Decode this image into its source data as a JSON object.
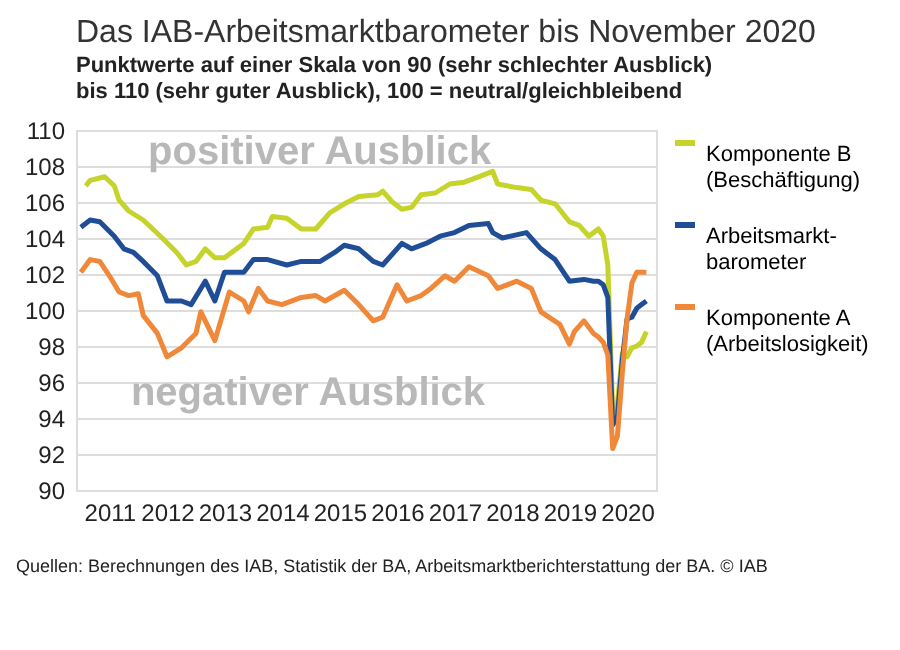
{
  "chart_data": {
    "type": "line",
    "title": "Das IAB-Arbeitsmarktbarometer bis November 2020",
    "subtitle": [
      "Punktwerte auf einer Skala von 90 (sehr schlechter Ausblick)",
      "bis 110 (sehr guter Ausblick), 100 = neutral/gleichbleibend"
    ],
    "annotations": [
      "positiver Ausblick",
      "negativer Ausblick",
      "Quellen: Berechnungen des IAB, Statistik der BA, Arbeitsmarktberichterstattung der BA. © IAB"
    ],
    "xlim": [
      "2010-12-01",
      "2021-01-01"
    ],
    "xticks": [
      {
        "value": "2011-07-01",
        "label": "2011"
      },
      {
        "value": "2012-07-01",
        "label": "2012"
      },
      {
        "value": "2013-07-01",
        "label": "2013"
      },
      {
        "value": "2014-07-01",
        "label": "2014"
      },
      {
        "value": "2015-07-01",
        "label": "2015"
      },
      {
        "value": "2016-07-01",
        "label": "2016"
      },
      {
        "value": "2017-07-01",
        "label": "2017"
      },
      {
        "value": "2018-07-01",
        "label": "2018"
      },
      {
        "value": "2019-07-01",
        "label": "2019"
      },
      {
        "value": "2020-07-01",
        "label": "2020"
      }
    ],
    "ylim": [
      90,
      110
    ],
    "yticks": [
      90,
      92,
      94,
      96,
      98,
      100,
      102,
      104,
      106,
      108,
      110
    ],
    "grid": "y",
    "legend": "right",
    "line_style": "solid",
    "marker": "none",
    "series": [
      {
        "name": "Komponente B\n(Beschäftigung)",
        "color": "#c5d32a",
        "x": [
          "2011-02",
          "2011-03",
          "2011-06",
          "2011-08",
          "2011-09",
          "2011-11",
          "2012-02",
          "2012-06",
          "2012-09",
          "2012-11",
          "2013-01",
          "2013-03",
          "2013-05",
          "2013-07",
          "2013-11",
          "2014-01",
          "2014-04",
          "2014-05",
          "2014-08",
          "2014-11",
          "2015-02",
          "2015-05",
          "2015-08",
          "2015-11",
          "2016-03",
          "2016-04",
          "2016-06",
          "2016-08",
          "2016-10",
          "2016-12",
          "2017-03",
          "2017-06",
          "2017-09",
          "2017-12",
          "2018-03",
          "2018-04",
          "2018-08",
          "2018-11",
          "2019-01",
          "2019-04",
          "2019-07",
          "2019-09",
          "2019-11",
          "2020-01",
          "2020-02",
          "2020-03",
          "2020-04",
          "2020-05",
          "2020-06",
          "2020-07",
          "2020-08",
          "2020-09",
          "2020-10",
          "2020-11"
        ],
        "values": [
          106.9,
          107.2,
          107.4,
          106.9,
          106.1,
          105.5,
          105,
          104,
          103.2,
          102.5,
          102.7,
          103.4,
          102.9,
          102.9,
          103.7,
          104.5,
          104.6,
          105.2,
          105.1,
          104.5,
          104.5,
          105.4,
          105.9,
          106.3,
          106.4,
          106.6,
          106,
          105.6,
          105.7,
          106.4,
          106.5,
          107,
          107.1,
          107.4,
          107.7,
          107,
          106.8,
          106.7,
          106.1,
          105.9,
          104.9,
          104.7,
          104.1,
          104.5,
          104.1,
          102.5,
          94.3,
          94.8,
          97.6,
          97.4,
          97.9,
          98,
          98.2,
          98.8
        ]
      },
      {
        "name": "Arbeitsmarkt-\nbarometer",
        "color": "#1f4e96",
        "x": [
          "2011-01",
          "2011-03",
          "2011-05",
          "2011-08",
          "2011-10",
          "2011-12",
          "2012-02",
          "2012-05",
          "2012-07",
          "2012-10",
          "2012-12",
          "2013-03",
          "2013-05",
          "2013-07",
          "2013-11",
          "2014-01",
          "2014-04",
          "2014-08",
          "2014-11",
          "2015-03",
          "2015-06",
          "2015-08",
          "2015-11",
          "2016-02",
          "2016-04",
          "2016-08",
          "2016-10",
          "2017-01",
          "2017-04",
          "2017-07",
          "2017-10",
          "2018-02",
          "2018-03",
          "2018-05",
          "2018-10",
          "2019-01",
          "2019-04",
          "2019-07",
          "2019-10",
          "2019-12",
          "2020-01",
          "2020-02",
          "2020-03",
          "2020-04",
          "2020-05",
          "2020-06",
          "2020-07",
          "2020-08",
          "2020-09",
          "2020-10",
          "2020-11"
        ],
        "values": [
          104.6,
          105,
          104.9,
          104.1,
          103.4,
          103.2,
          102.7,
          101.9,
          100.5,
          100.5,
          100.3,
          101.6,
          100.5,
          102.1,
          102.1,
          102.8,
          102.8,
          102.5,
          102.7,
          102.7,
          103.2,
          103.6,
          103.4,
          102.7,
          102.5,
          103.7,
          103.4,
          103.7,
          104.1,
          104.3,
          104.7,
          104.8,
          104.3,
          104,
          104.3,
          103.4,
          102.8,
          101.6,
          101.7,
          101.6,
          101.6,
          101.4,
          100.7,
          93.6,
          94.1,
          97.2,
          99.5,
          99.6,
          100.1,
          100.3,
          100.5
        ]
      },
      {
        "name": "Komponente A\n(Arbeitslosigkeit)",
        "color": "#f0883a",
        "x": [
          "2011-01",
          "2011-03",
          "2011-05",
          "2011-07",
          "2011-09",
          "2011-11",
          "2012-01",
          "2012-02",
          "2012-05",
          "2012-07",
          "2012-10",
          "2013-01",
          "2013-02",
          "2013-05",
          "2013-08",
          "2013-11",
          "2013-12",
          "2014-02",
          "2014-04",
          "2014-07",
          "2014-11",
          "2015-02",
          "2015-04",
          "2015-08",
          "2015-11",
          "2016-02",
          "2016-04",
          "2016-07",
          "2016-09",
          "2016-12",
          "2017-02",
          "2017-05",
          "2017-07",
          "2017-10",
          "2018-02",
          "2018-04",
          "2018-08",
          "2018-11",
          "2019-01",
          "2019-05",
          "2019-07",
          "2019-08",
          "2019-10",
          "2019-12",
          "2020-01",
          "2020-02",
          "2020-03",
          "2020-04",
          "2020-05",
          "2020-06",
          "2020-07",
          "2020-08",
          "2020-09",
          "2020-10",
          "2020-11"
        ],
        "values": [
          102.1,
          102.8,
          102.7,
          101.9,
          101,
          100.8,
          100.9,
          99.7,
          98.7,
          97.4,
          97.9,
          98.7,
          99.9,
          98.3,
          101,
          100.5,
          99.9,
          101.2,
          100.5,
          100.3,
          100.7,
          100.8,
          100.5,
          101.1,
          100.3,
          99.4,
          99.6,
          101.4,
          100.5,
          100.8,
          101.2,
          101.9,
          101.6,
          102.4,
          101.9,
          101.2,
          101.6,
          101.2,
          99.9,
          99.2,
          98.1,
          98.8,
          99.4,
          98.7,
          98.5,
          98.2,
          97.5,
          92.3,
          93,
          96.5,
          99.5,
          101.5,
          102.1,
          102.1,
          102.1
        ]
      }
    ]
  }
}
